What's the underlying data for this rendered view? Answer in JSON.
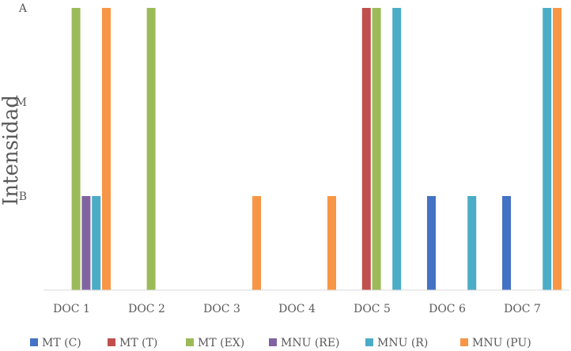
{
  "chart_data": {
    "type": "bar",
    "title": "",
    "xlabel": "",
    "ylabel": "Intensidad",
    "categories": [
      "DOC 1",
      "DOC 2",
      "DOC 3",
      "DOC 4",
      "DOC 5",
      "DOC 6",
      "DOC 7"
    ],
    "y_levels": [
      {
        "label": "B",
        "value": 1
      },
      {
        "label": "M",
        "value": 2
      },
      {
        "label": "A",
        "value": 3
      }
    ],
    "ylim": [
      0,
      3
    ],
    "grid": false,
    "legend_position": "bottom",
    "series": [
      {
        "name": "MT (C)",
        "color": "#4472C4",
        "values": [
          0,
          0,
          0,
          0,
          0,
          1,
          1
        ]
      },
      {
        "name": "MT (T)",
        "color": "#C0504D",
        "values": [
          0,
          0,
          0,
          0,
          3,
          0,
          0
        ]
      },
      {
        "name": "MT (EX)",
        "color": "#9BBB59",
        "values": [
          3,
          3,
          0,
          0,
          3,
          0,
          0
        ]
      },
      {
        "name": "MNU (RE)",
        "color": "#8064A2",
        "values": [
          1,
          0,
          0,
          0,
          0,
          0,
          0
        ]
      },
      {
        "name": "MNU (R)",
        "color": "#4BACC6",
        "values": [
          1,
          0,
          0,
          0,
          3,
          1,
          3
        ]
      },
      {
        "name": "MNU (PU)",
        "color": "#F79646",
        "values": [
          3,
          0,
          1,
          1,
          0,
          0,
          3
        ]
      }
    ]
  }
}
